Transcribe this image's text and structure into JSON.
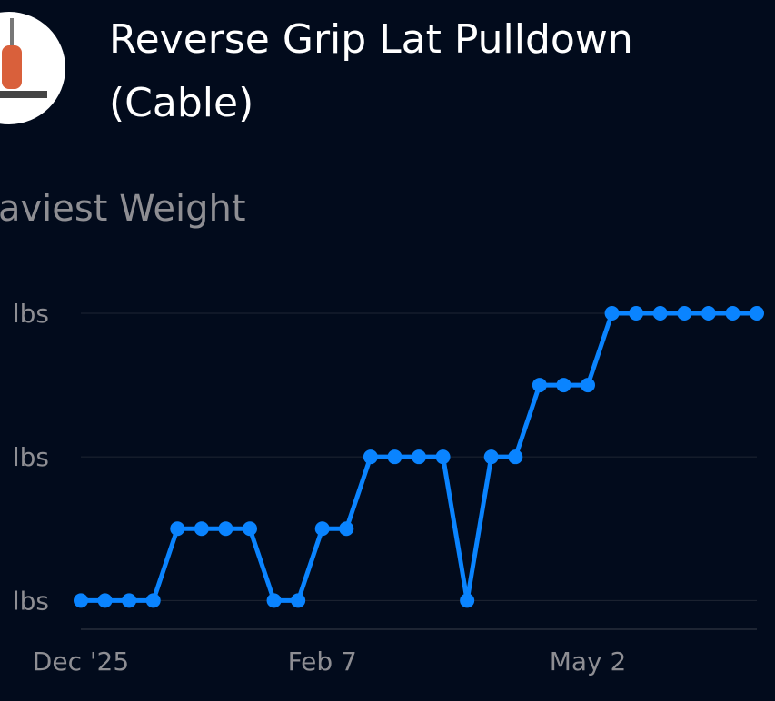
{
  "header": {
    "title_lines": [
      "Reverse Grip Lat Pulldown",
      "(Cable)"
    ]
  },
  "chart_data": {
    "type": "line",
    "title": "aviest Weight",
    "categories": [
      "Dec '25",
      null,
      null,
      null,
      null,
      null,
      null,
      null,
      null,
      null,
      "Feb 7",
      null,
      null,
      null,
      null,
      null,
      null,
      null,
      null,
      null,
      null,
      "May 2",
      null,
      null,
      null,
      null,
      null,
      null,
      null
    ],
    "values": [
      0,
      0,
      0,
      0,
      0.5,
      0.5,
      0.5,
      0.5,
      0,
      0,
      0.5,
      0.5,
      1,
      1,
      1,
      1,
      0,
      1,
      1,
      1.5,
      1.5,
      1.5,
      2,
      2,
      2,
      2,
      2,
      2,
      2
    ],
    "color": "#0a84ff",
    "ylim": [
      -0.2,
      2
    ],
    "yticks": [
      {
        "value": 0,
        "label": "lbs"
      },
      {
        "value": 1,
        "label": "lbs"
      },
      {
        "value": 2,
        "label": "lbs"
      }
    ],
    "grid": true
  }
}
